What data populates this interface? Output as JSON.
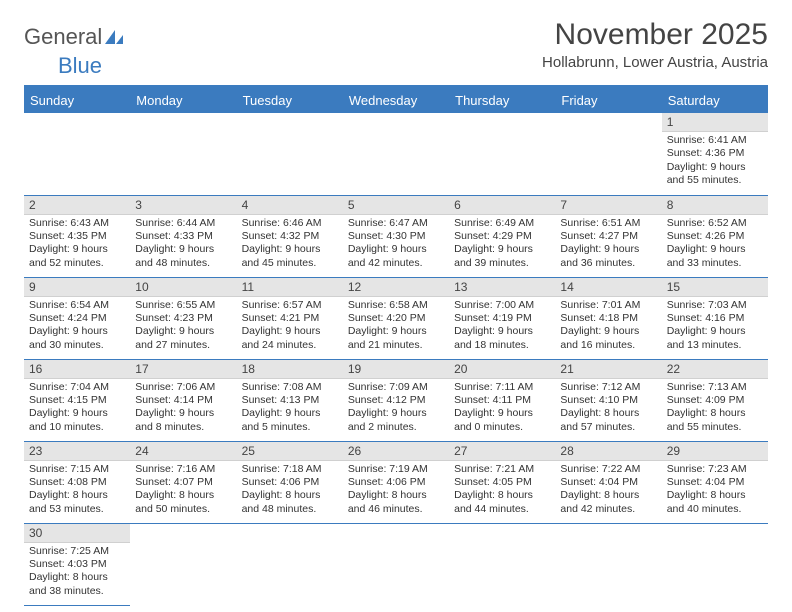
{
  "brand": {
    "part1": "General",
    "part2": "Blue"
  },
  "title": {
    "month": "November 2025",
    "location": "Hollabrunn, Lower Austria, Austria"
  },
  "colors": {
    "accent": "#3b7bbf",
    "daynum_bg": "#e5e5e5",
    "text": "#333333",
    "header_text": "#444444"
  },
  "columns": [
    "Sunday",
    "Monday",
    "Tuesday",
    "Wednesday",
    "Thursday",
    "Friday",
    "Saturday"
  ],
  "weeks": [
    [
      null,
      null,
      null,
      null,
      null,
      null,
      {
        "n": "1",
        "sunrise": "6:41 AM",
        "sunset": "4:36 PM",
        "dl": "9 hours and 55 minutes."
      }
    ],
    [
      {
        "n": "2",
        "sunrise": "6:43 AM",
        "sunset": "4:35 PM",
        "dl": "9 hours and 52 minutes."
      },
      {
        "n": "3",
        "sunrise": "6:44 AM",
        "sunset": "4:33 PM",
        "dl": "9 hours and 48 minutes."
      },
      {
        "n": "4",
        "sunrise": "6:46 AM",
        "sunset": "4:32 PM",
        "dl": "9 hours and 45 minutes."
      },
      {
        "n": "5",
        "sunrise": "6:47 AM",
        "sunset": "4:30 PM",
        "dl": "9 hours and 42 minutes."
      },
      {
        "n": "6",
        "sunrise": "6:49 AM",
        "sunset": "4:29 PM",
        "dl": "9 hours and 39 minutes."
      },
      {
        "n": "7",
        "sunrise": "6:51 AM",
        "sunset": "4:27 PM",
        "dl": "9 hours and 36 minutes."
      },
      {
        "n": "8",
        "sunrise": "6:52 AM",
        "sunset": "4:26 PM",
        "dl": "9 hours and 33 minutes."
      }
    ],
    [
      {
        "n": "9",
        "sunrise": "6:54 AM",
        "sunset": "4:24 PM",
        "dl": "9 hours and 30 minutes."
      },
      {
        "n": "10",
        "sunrise": "6:55 AM",
        "sunset": "4:23 PM",
        "dl": "9 hours and 27 minutes."
      },
      {
        "n": "11",
        "sunrise": "6:57 AM",
        "sunset": "4:21 PM",
        "dl": "9 hours and 24 minutes."
      },
      {
        "n": "12",
        "sunrise": "6:58 AM",
        "sunset": "4:20 PM",
        "dl": "9 hours and 21 minutes."
      },
      {
        "n": "13",
        "sunrise": "7:00 AM",
        "sunset": "4:19 PM",
        "dl": "9 hours and 18 minutes."
      },
      {
        "n": "14",
        "sunrise": "7:01 AM",
        "sunset": "4:18 PM",
        "dl": "9 hours and 16 minutes."
      },
      {
        "n": "15",
        "sunrise": "7:03 AM",
        "sunset": "4:16 PM",
        "dl": "9 hours and 13 minutes."
      }
    ],
    [
      {
        "n": "16",
        "sunrise": "7:04 AM",
        "sunset": "4:15 PM",
        "dl": "9 hours and 10 minutes."
      },
      {
        "n": "17",
        "sunrise": "7:06 AM",
        "sunset": "4:14 PM",
        "dl": "9 hours and 8 minutes."
      },
      {
        "n": "18",
        "sunrise": "7:08 AM",
        "sunset": "4:13 PM",
        "dl": "9 hours and 5 minutes."
      },
      {
        "n": "19",
        "sunrise": "7:09 AM",
        "sunset": "4:12 PM",
        "dl": "9 hours and 2 minutes."
      },
      {
        "n": "20",
        "sunrise": "7:11 AM",
        "sunset": "4:11 PM",
        "dl": "9 hours and 0 minutes."
      },
      {
        "n": "21",
        "sunrise": "7:12 AM",
        "sunset": "4:10 PM",
        "dl": "8 hours and 57 minutes."
      },
      {
        "n": "22",
        "sunrise": "7:13 AM",
        "sunset": "4:09 PM",
        "dl": "8 hours and 55 minutes."
      }
    ],
    [
      {
        "n": "23",
        "sunrise": "7:15 AM",
        "sunset": "4:08 PM",
        "dl": "8 hours and 53 minutes."
      },
      {
        "n": "24",
        "sunrise": "7:16 AM",
        "sunset": "4:07 PM",
        "dl": "8 hours and 50 minutes."
      },
      {
        "n": "25",
        "sunrise": "7:18 AM",
        "sunset": "4:06 PM",
        "dl": "8 hours and 48 minutes."
      },
      {
        "n": "26",
        "sunrise": "7:19 AM",
        "sunset": "4:06 PM",
        "dl": "8 hours and 46 minutes."
      },
      {
        "n": "27",
        "sunrise": "7:21 AM",
        "sunset": "4:05 PM",
        "dl": "8 hours and 44 minutes."
      },
      {
        "n": "28",
        "sunrise": "7:22 AM",
        "sunset": "4:04 PM",
        "dl": "8 hours and 42 minutes."
      },
      {
        "n": "29",
        "sunrise": "7:23 AM",
        "sunset": "4:04 PM",
        "dl": "8 hours and 40 minutes."
      }
    ],
    [
      {
        "n": "30",
        "sunrise": "7:25 AM",
        "sunset": "4:03 PM",
        "dl": "8 hours and 38 minutes."
      },
      null,
      null,
      null,
      null,
      null,
      null
    ]
  ],
  "labels": {
    "sunrise": "Sunrise: ",
    "sunset": "Sunset: ",
    "daylight": "Daylight: "
  }
}
